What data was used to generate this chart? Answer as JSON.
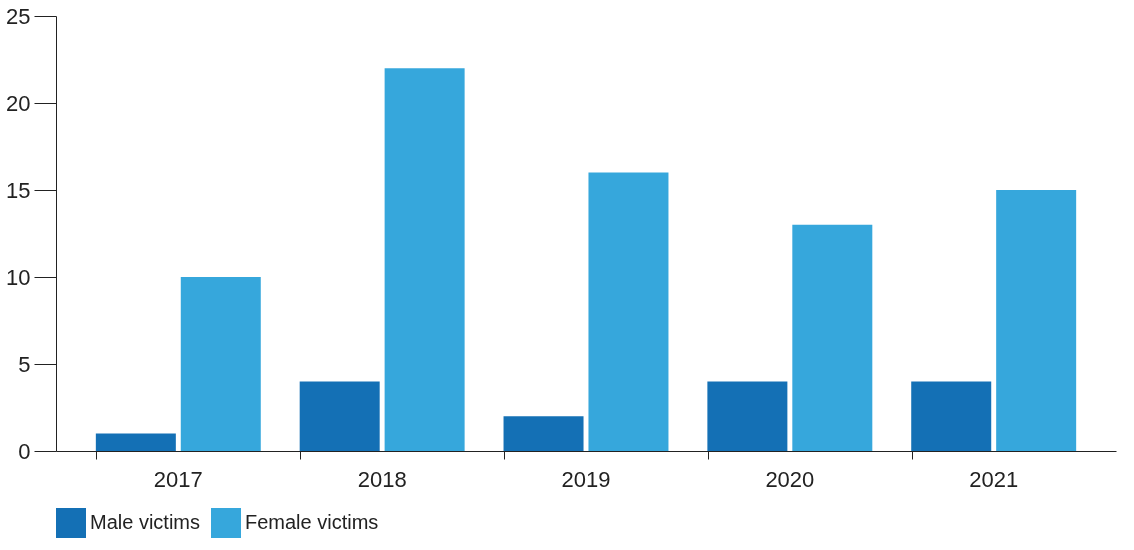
{
  "chart_data": {
    "type": "bar",
    "categories": [
      "2017",
      "2018",
      "2019",
      "2020",
      "2021"
    ],
    "series": [
      {
        "name": "Male victims",
        "color": "#1470b5",
        "values": [
          1,
          4,
          2,
          4,
          4
        ]
      },
      {
        "name": "Female victims",
        "color": "#36a7dc",
        "values": [
          10,
          22,
          16,
          13,
          15
        ]
      }
    ],
    "ylim": [
      0,
      25
    ],
    "yticks": [
      0,
      5,
      10,
      15,
      20,
      25
    ],
    "grid": false,
    "legend": "bottom"
  }
}
